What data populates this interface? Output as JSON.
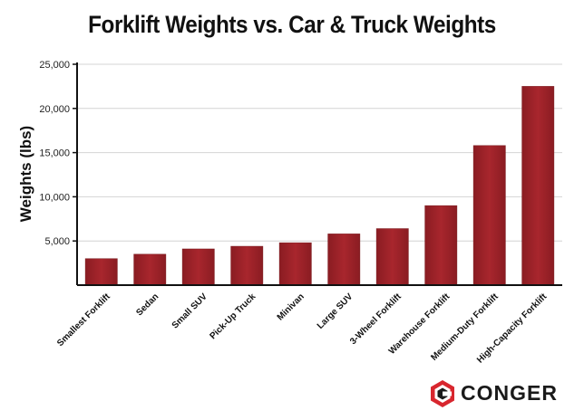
{
  "chart_data": {
    "type": "bar",
    "title": "Forklift Weights vs. Car & Truck Weights",
    "xlabel": "",
    "ylabel": "Weights (lbs)",
    "ylim": [
      0,
      25000
    ],
    "yticks": [
      5000,
      10000,
      15000,
      20000,
      25000
    ],
    "ytick_labels": [
      "5,000",
      "10,000",
      "15,000",
      "20,000",
      "25,000"
    ],
    "categories": [
      "Smallest Forklift",
      "Sedan",
      "Small SUV",
      "Pick-Up Truck",
      "Minivan",
      "Large SUV",
      "3-Wheel Forklift",
      "Warehouse Forklift",
      "Medium-Duty Forklift",
      "High-Capacity Forklift"
    ],
    "values": [
      3000,
      3500,
      4100,
      4400,
      4800,
      5800,
      6400,
      9000,
      15800,
      22500
    ],
    "grid": "horizontal",
    "bar_color": "#9e2229"
  },
  "brand": {
    "name": "CONGER"
  }
}
